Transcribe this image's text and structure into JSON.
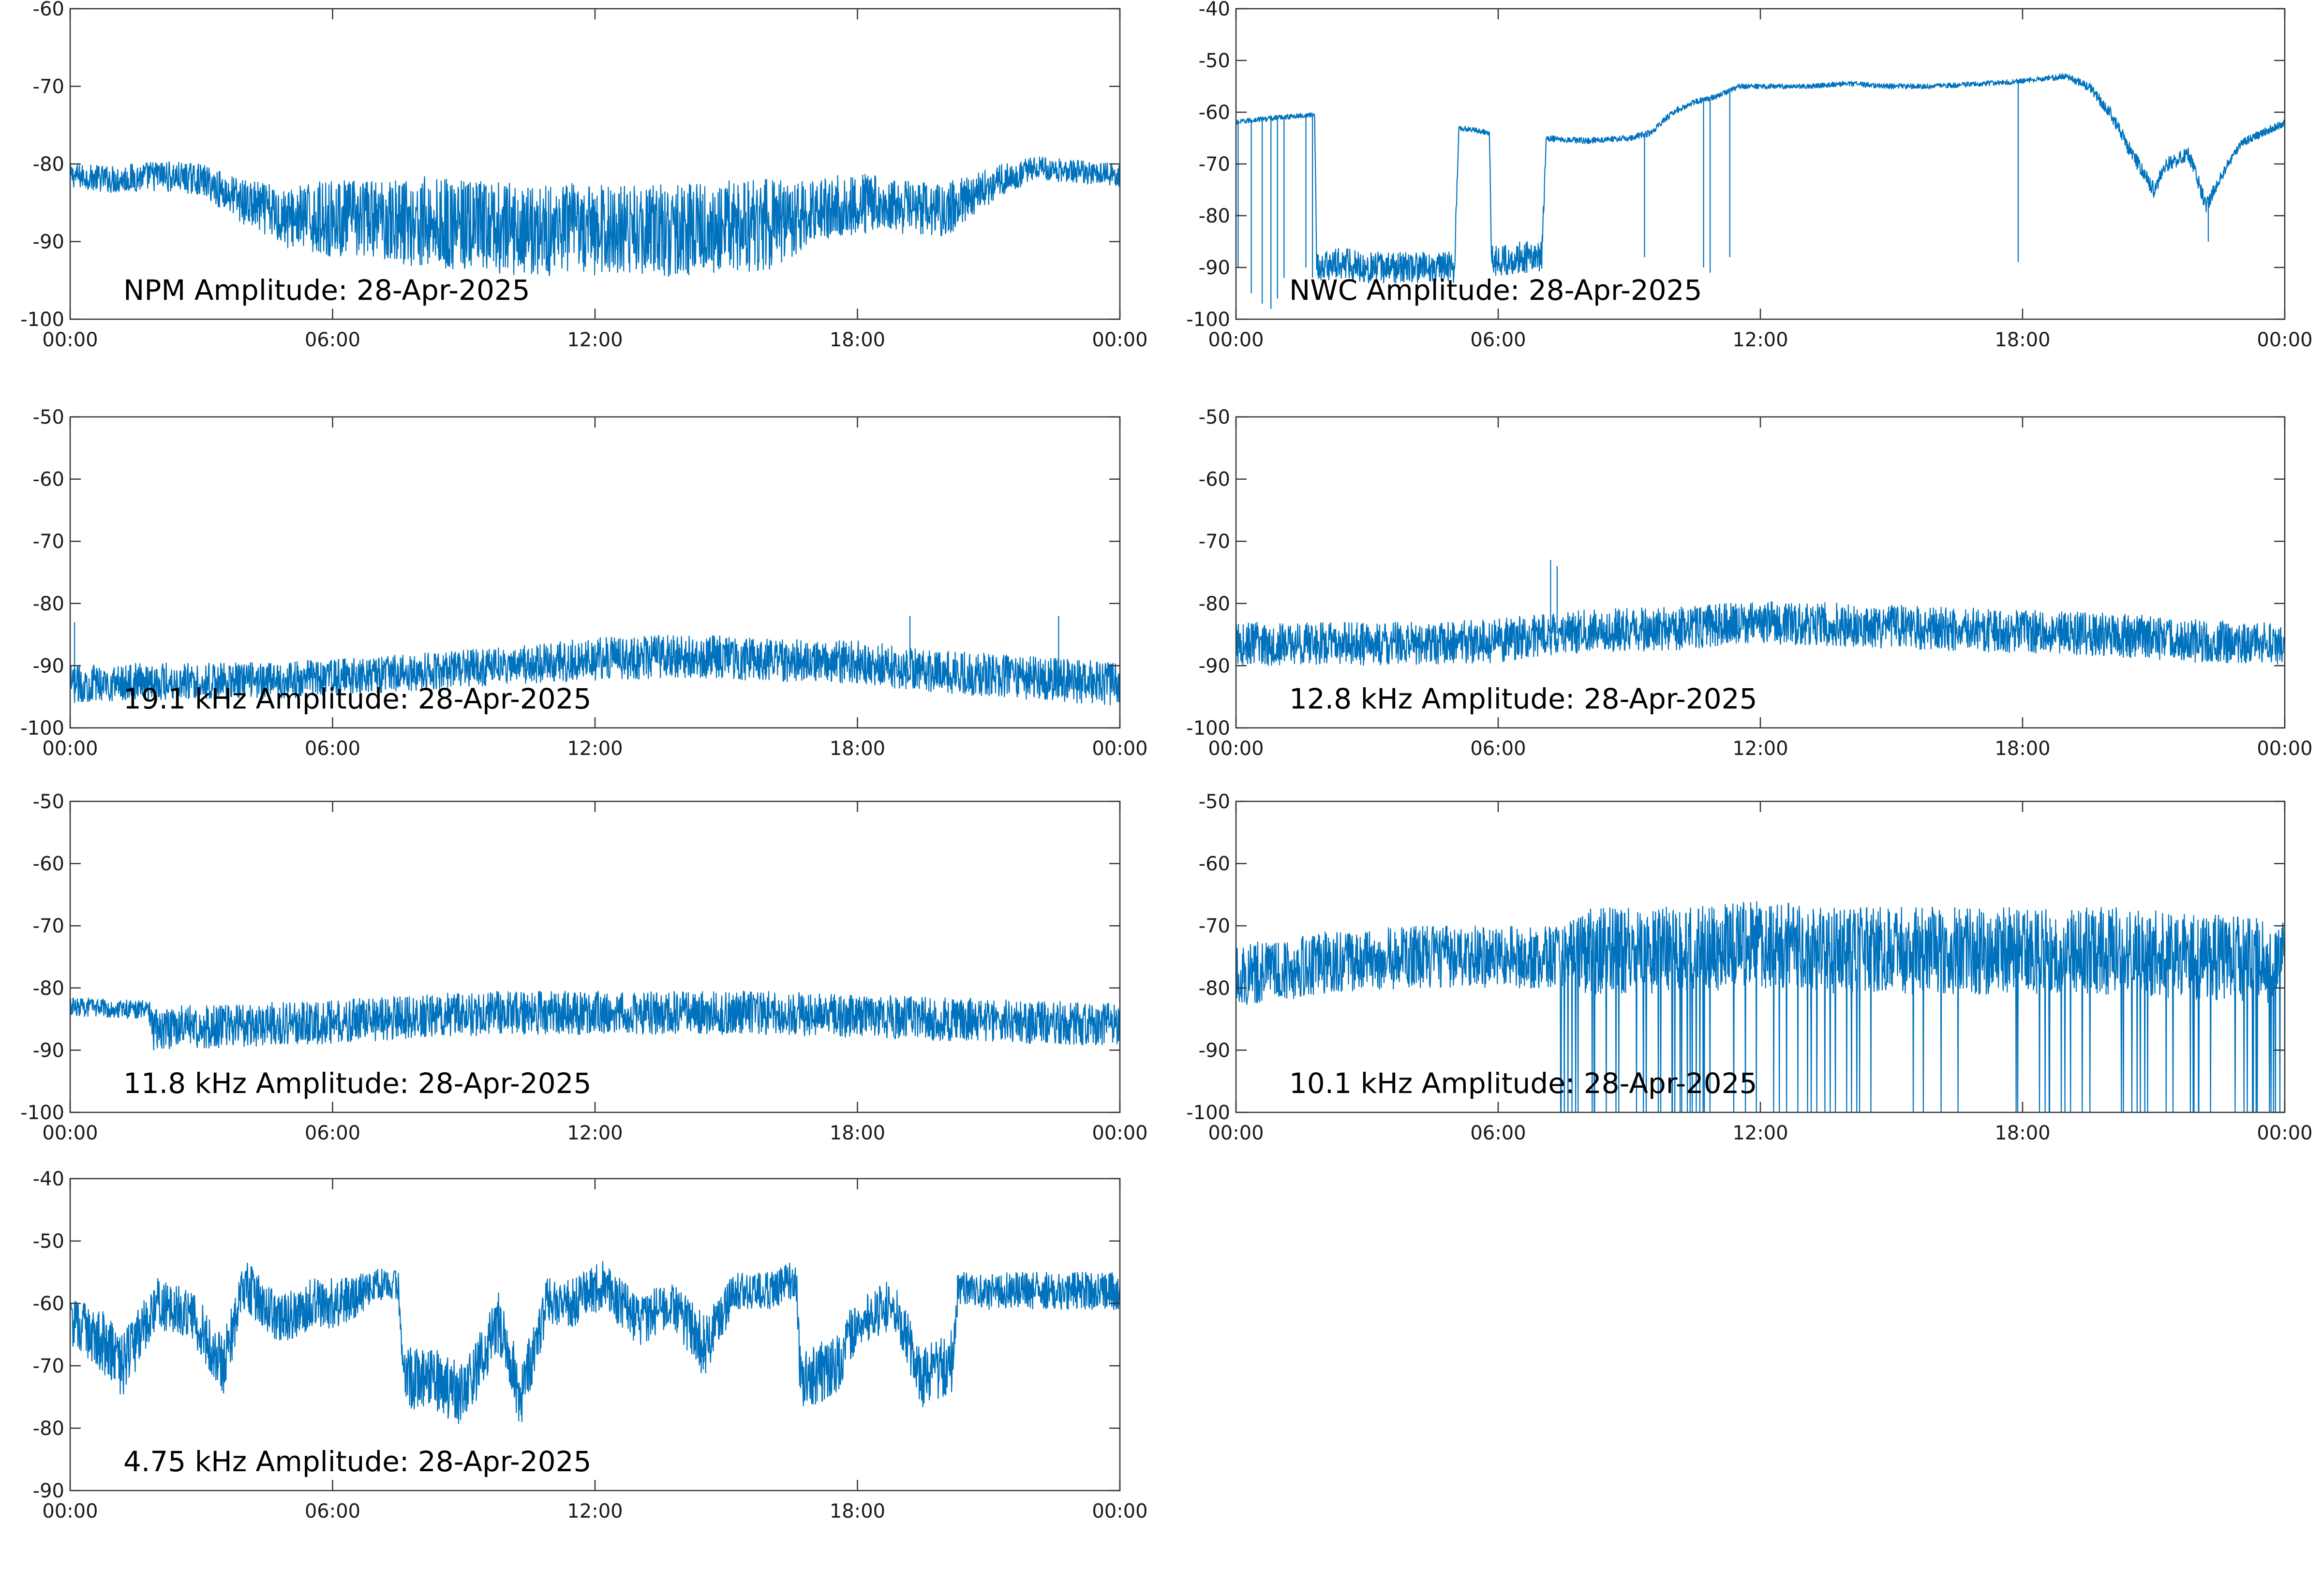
{
  "style": {
    "line_color": "#0072BD"
  },
  "chart_data": [
    {
      "type": "line",
      "title": "NPM Amplitude: 28-Apr-2025",
      "xlabel": "",
      "ylabel": "",
      "xlim": [
        "00:00",
        "24:00"
      ],
      "xticks": [
        "00:00",
        "06:00",
        "12:00",
        "18:00",
        "00:00"
      ],
      "ylim": [
        -100,
        -60
      ],
      "yticks": [
        "-100",
        "-90",
        "-80",
        "-70",
        "-60"
      ],
      "x_hours": [
        0,
        1,
        2,
        3,
        4,
        5,
        6,
        7,
        8,
        9,
        10,
        11,
        12,
        13,
        14,
        15,
        16,
        17,
        18,
        19,
        20,
        21,
        22,
        23,
        24
      ],
      "mean": [
        -81.5,
        -82,
        -81.5,
        -82,
        -85,
        -87,
        -87,
        -87,
        -87.5,
        -88,
        -88.5,
        -88.5,
        -88.5,
        -88.5,
        -88.5,
        -88,
        -88,
        -86,
        -85,
        -85.5,
        -86,
        -83,
        -80.5,
        -81,
        -81.5
      ],
      "spread": [
        1.5,
        1.8,
        2,
        2,
        3,
        4,
        5,
        5,
        6,
        6,
        6,
        6,
        6,
        6,
        6,
        6,
        6,
        4,
        4,
        3.5,
        3.5,
        2.5,
        1.5,
        1.5,
        1.5
      ]
    },
    {
      "type": "line",
      "title": "NWC Amplitude: 28-Apr-2025",
      "xlabel": "",
      "ylabel": "",
      "xlim": [
        "00:00",
        "24:00"
      ],
      "xticks": [
        "00:00",
        "06:00",
        "12:00",
        "18:00",
        "00:00"
      ],
      "ylim": [
        -100,
        -40
      ],
      "yticks": [
        "-100",
        "-90",
        "-80",
        "-70",
        "-60",
        "-50",
        "-40"
      ],
      "x_hours": [
        0,
        0.4,
        1,
        1.8,
        1.85,
        2.5,
        3,
        4,
        5,
        5.1,
        5.5,
        5.8,
        5.85,
        6,
        6.5,
        7,
        7.1,
        8,
        9,
        9.5,
        10,
        10.5,
        11,
        11.5,
        12,
        13,
        14,
        15,
        16,
        17,
        18,
        19,
        19.5,
        20,
        20.5,
        21,
        21.3,
        21.8,
        22.2,
        22.7,
        23,
        24
      ],
      "mean": [
        -62,
        -61.5,
        -61,
        -60.5,
        -90,
        -89,
        -90,
        -90,
        -90,
        -63,
        -63.5,
        -64,
        -88,
        -89,
        -88,
        -88,
        -65,
        -65.5,
        -65,
        -64,
        -60,
        -58,
        -57,
        -55,
        -55,
        -55,
        -54.5,
        -55,
        -55,
        -54.5,
        -54,
        -53,
        -55,
        -60,
        -68,
        -75,
        -70,
        -68,
        -78,
        -70,
        -66,
        -62
      ],
      "spread": [
        0.5,
        0.5,
        0.5,
        0.5,
        3,
        3,
        3,
        3,
        3,
        0.5,
        0.5,
        0.5,
        3,
        3,
        3,
        3,
        0.6,
        0.6,
        0.6,
        0.6,
        0.6,
        0.6,
        0.5,
        0.5,
        0.5,
        0.5,
        0.5,
        0.5,
        0.5,
        0.5,
        0.5,
        0.6,
        1,
        1.2,
        1.5,
        1.5,
        1.5,
        1.5,
        1.5,
        1,
        0.8,
        0.8
      ],
      "dropouts": [
        {
          "hour": 0.05,
          "to": -90
        },
        {
          "hour": 0.35,
          "to": -95
        },
        {
          "hour": 0.6,
          "to": -97
        },
        {
          "hour": 0.8,
          "to": -98
        },
        {
          "hour": 0.95,
          "to": -96
        },
        {
          "hour": 1.1,
          "to": -92
        },
        {
          "hour": 1.6,
          "to": -90
        },
        {
          "hour": 1.75,
          "to": -92
        },
        {
          "hour": 9.35,
          "to": -88
        },
        {
          "hour": 10.7,
          "to": -90
        },
        {
          "hour": 10.85,
          "to": -91
        },
        {
          "hour": 11.3,
          "to": -88
        },
        {
          "hour": 17.9,
          "to": -89
        },
        {
          "hour": 22.25,
          "to": -85
        }
      ]
    },
    {
      "type": "line",
      "title": "19.1 kHz Amplitude: 28-Apr-2025",
      "xlabel": "",
      "ylabel": "",
      "xlim": [
        "00:00",
        "24:00"
      ],
      "xticks": [
        "00:00",
        "06:00",
        "12:00",
        "18:00",
        "00:00"
      ],
      "ylim": [
        -100,
        -50
      ],
      "yticks": [
        "-100",
        "-90",
        "-80",
        "-70",
        "-60",
        "-50"
      ],
      "x_hours": [
        0,
        2,
        4,
        6,
        8,
        10,
        12,
        14,
        16,
        18,
        20,
        22,
        24
      ],
      "mean": [
        -93,
        -92.5,
        -92.5,
        -92,
        -91,
        -90,
        -89,
        -88.5,
        -89,
        -89.5,
        -91,
        -92,
        -93
      ],
      "spread": [
        3,
        3,
        3,
        3,
        3,
        3,
        3.5,
        3.5,
        3.5,
        3.5,
        3.5,
        3.5,
        3.5
      ],
      "spikes": [
        {
          "hour": 19.2,
          "to": -82
        },
        {
          "hour": 22.6,
          "to": -82
        },
        {
          "hour": 0.1,
          "to": -83
        }
      ]
    },
    {
      "type": "line",
      "title": "12.8 kHz Amplitude: 28-Apr-2025",
      "xlabel": "",
      "ylabel": "",
      "xlim": [
        "00:00",
        "24:00"
      ],
      "xticks": [
        "00:00",
        "06:00",
        "12:00",
        "18:00",
        "00:00"
      ],
      "ylim": [
        -100,
        -50
      ],
      "yticks": [
        "-100",
        "-90",
        "-80",
        "-70",
        "-60",
        "-50"
      ],
      "x_hours": [
        0,
        2,
        4,
        6,
        7,
        8,
        10,
        12,
        14,
        16,
        18,
        20,
        22,
        24
      ],
      "mean": [
        -86.5,
        -86.5,
        -86.5,
        -86,
        -85,
        -84.5,
        -84,
        -83,
        -83.5,
        -84,
        -84.5,
        -85,
        -86,
        -86.5
      ],
      "spread": [
        3.5,
        3.5,
        3.5,
        3.5,
        3.5,
        3.5,
        3.5,
        3.5,
        3.5,
        3.5,
        3.5,
        3.5,
        3.5,
        3.5
      ],
      "spikes": [
        {
          "hour": 7.2,
          "to": -73
        },
        {
          "hour": 7.35,
          "to": -74
        }
      ]
    },
    {
      "type": "line",
      "title": "11.8 kHz Amplitude: 28-Apr-2025",
      "xlabel": "",
      "ylabel": "",
      "xlim": [
        "00:00",
        "24:00"
      ],
      "xticks": [
        "00:00",
        "06:00",
        "12:00",
        "18:00",
        "00:00"
      ],
      "ylim": [
        -100,
        -50
      ],
      "yticks": [
        "-100",
        "-90",
        "-80",
        "-70",
        "-60",
        "-50"
      ],
      "x_hours": [
        0,
        1.8,
        1.9,
        4,
        6,
        8,
        10,
        12,
        14,
        16,
        18,
        20,
        22,
        24
      ],
      "mean": [
        -83,
        -83.5,
        -86.5,
        -86,
        -85.5,
        -84.5,
        -84,
        -84,
        -84,
        -84,
        -84.5,
        -85,
        -85.5,
        -86
      ],
      "spread": [
        1.5,
        1.5,
        3.5,
        3.5,
        3.5,
        3.5,
        3.5,
        3.5,
        3.5,
        3.5,
        3.5,
        3.5,
        3.5,
        3.5
      ]
    },
    {
      "type": "line",
      "title": "10.1 kHz Amplitude: 28-Apr-2025",
      "xlabel": "",
      "ylabel": "",
      "xlim": [
        "00:00",
        "24:00"
      ],
      "xticks": [
        "00:00",
        "06:00",
        "12:00",
        "18:00",
        "00:00"
      ],
      "ylim": [
        -100,
        -50
      ],
      "yticks": [
        "-100",
        "-90",
        "-80",
        "-70",
        "-60",
        "-50"
      ],
      "x_hours": [
        0,
        2,
        4,
        6,
        7.4,
        8,
        10,
        12,
        14,
        16,
        18,
        20,
        22,
        24
      ],
      "mean": [
        -78,
        -76,
        -75,
        -75,
        -75,
        -74,
        -74,
        -73,
        -74,
        -74,
        -74,
        -74,
        -75,
        -76
      ],
      "spread": [
        5,
        5,
        5,
        5,
        5,
        7,
        7,
        7,
        7,
        7,
        7,
        7,
        7,
        7
      ],
      "deep_fades_from_hour": 7.4,
      "fade_floor": -100
    },
    {
      "type": "line",
      "title": "4.75 kHz Amplitude: 28-Apr-2025",
      "xlabel": "",
      "ylabel": "",
      "xlim": [
        "00:00",
        "24:00"
      ],
      "xticks": [
        "00:00",
        "06:00",
        "12:00",
        "18:00",
        "00:00"
      ],
      "ylim": [
        -90,
        -40
      ],
      "yticks": [
        "-90",
        "-80",
        "-70",
        "-60",
        "-50",
        "-40"
      ],
      "x_hours": [
        0,
        0.6,
        1.2,
        2,
        2.8,
        3.5,
        4,
        4.8,
        5.5,
        6.2,
        7,
        7.5,
        7.6,
        8.3,
        9,
        9.8,
        10.3,
        10.9,
        11.5,
        12.2,
        13,
        13.8,
        14.5,
        15.2,
        16,
        16.6,
        16.7,
        17.5,
        18,
        18.8,
        19.5,
        20.2,
        20.3,
        21,
        22,
        23,
        24
      ],
      "mean": [
        -63,
        -65,
        -70,
        -60,
        -62,
        -70,
        -57,
        -63,
        -60,
        -60,
        -57,
        -57,
        -72,
        -72,
        -75,
        -63,
        -75,
        -60,
        -60,
        -57,
        -63,
        -60,
        -67,
        -58,
        -58,
        -56,
        -72,
        -70,
        -63,
        -60,
        -72,
        -69,
        -57,
        -58,
        -58,
        -58,
        -58
      ],
      "spread": [
        4,
        5,
        5,
        4,
        4,
        5,
        4,
        4,
        4,
        4,
        2.5,
        2.5,
        5,
        5,
        5,
        5,
        5,
        4,
        4,
        4,
        4,
        4,
        5,
        3,
        3,
        3,
        5,
        5,
        4,
        4,
        5,
        5,
        3,
        3,
        3,
        3,
        3
      ]
    }
  ]
}
